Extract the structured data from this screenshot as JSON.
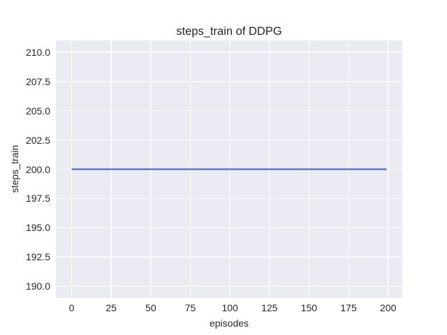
{
  "chart_data": {
    "type": "line",
    "title": "steps_train of DDPG",
    "xlabel": "episodes",
    "ylabel": "steps_train",
    "xlim": [
      -9.95,
      208.95
    ],
    "ylim": [
      189,
      211
    ],
    "xtick_labels": [
      "0",
      "25",
      "50",
      "75",
      "100",
      "125",
      "150",
      "175",
      "200"
    ],
    "ytick_labels": [
      "190.0",
      "192.5",
      "195.0",
      "197.5",
      "200.0",
      "202.5",
      "205.0",
      "207.5",
      "210.0"
    ],
    "grid": true,
    "legend_position": "none",
    "series": [
      {
        "name": "steps_train",
        "color": "#4C72B0",
        "x": [
          0,
          199
        ],
        "y": [
          200,
          200
        ]
      }
    ],
    "styles": {
      "figure_bg": "#FFFFFF",
      "plot_bg": "#EAEAF2",
      "grid_color": "#FFFFFF",
      "text_color": "#262626"
    }
  }
}
